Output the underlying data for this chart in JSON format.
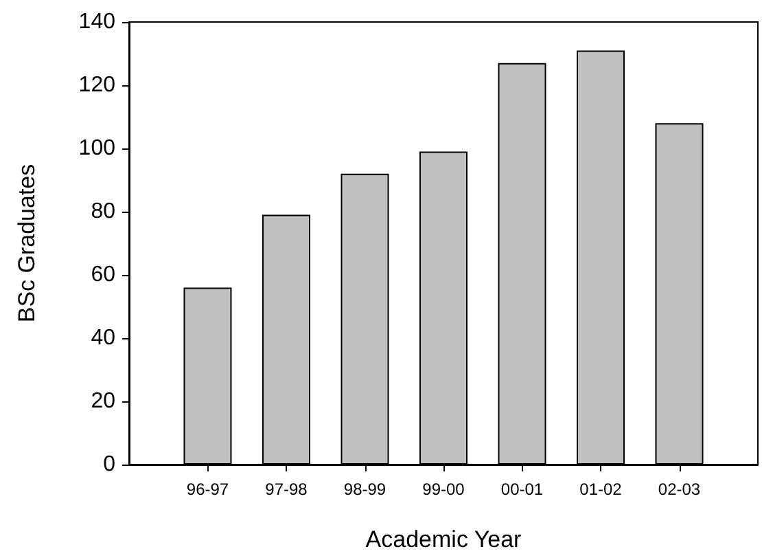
{
  "chart_data": {
    "type": "bar",
    "xlabel": "Academic Year",
    "ylabel": "BSc Graduates",
    "categories": [
      "96-97",
      "97-98",
      "98-99",
      "99-00",
      "00-01",
      "01-02",
      "02-03"
    ],
    "values": [
      56,
      79,
      92,
      99,
      127,
      131,
      108
    ],
    "color": "#c0c0c0",
    "ylim": [
      0,
      140
    ],
    "yticks": [
      0,
      20,
      40,
      60,
      80,
      100,
      120,
      140
    ],
    "grid": false
  }
}
